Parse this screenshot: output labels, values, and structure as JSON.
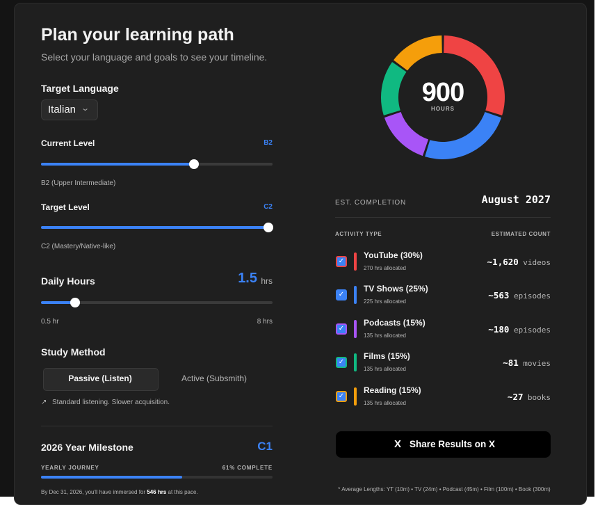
{
  "header": {
    "title": "Plan your learning path",
    "subtitle": "Select your language and goals to see your timeline."
  },
  "target_language": {
    "label": "Target Language",
    "value": "Italian"
  },
  "current_level": {
    "label": "Current Level",
    "badge": "B2",
    "description": "B2 (Upper Intermediate)"
  },
  "target_level": {
    "label": "Target Level",
    "badge": "C2",
    "description": "C2 (Mastery/Native-like)"
  },
  "daily_hours": {
    "label": "Daily Hours",
    "value": 1.5,
    "unit": "hrs",
    "min_label": "0.5 hr",
    "max_label": "8 hrs"
  },
  "study_method": {
    "label": "Study Method",
    "options": [
      "Passive (Listen)",
      "Active (Subsmith)"
    ],
    "note": "Standard listening. Slower acquisition."
  },
  "milestone": {
    "title": "2026 Year Milestone",
    "level": "C1",
    "journey_label": "YEARLY JOURNEY",
    "progress": 61,
    "progress_label": "61% COMPLETE",
    "note_before": "By Dec 31, 2026, you'll have immersed for ",
    "note_bold": "546 hrs",
    "note_after": " at this pace."
  },
  "summary": {
    "total": 900,
    "total_unit": "HOURS",
    "completion_label": "EST. COMPLETION",
    "completion_value": "August 2027"
  },
  "activities": {
    "header_type": "ACTIVITY TYPE",
    "header_count": "ESTIMATED COUNT",
    "items": [
      {
        "name": "YouTube (30%)",
        "share": 30,
        "allocated": "270 hrs allocated",
        "count": "~1,620",
        "unit": "videos",
        "color": "#ef4444"
      },
      {
        "name": "TV Shows (25%)",
        "share": 25,
        "allocated": "225 hrs allocated",
        "count": "~563",
        "unit": "episodes",
        "color": "#3b82f6"
      },
      {
        "name": "Podcasts (15%)",
        "share": 15,
        "allocated": "135 hrs allocated",
        "count": "~180",
        "unit": "episodes",
        "color": "#a855f7"
      },
      {
        "name": "Films (15%)",
        "share": 15,
        "allocated": "135 hrs allocated",
        "count": "~81",
        "unit": "movies",
        "color": "#10b981"
      },
      {
        "name": "Reading (15%)",
        "share": 15,
        "allocated": "135 hrs allocated",
        "count": "~27",
        "unit": "books",
        "color": "#f59e0b"
      }
    ]
  },
  "share_button": {
    "icon": "X",
    "label": "Share Results on X"
  },
  "footer": {
    "note": "* Average Lengths: YT (10m) • TV (24m) • Podcast (45m) • Film (100m) • Book (300m)"
  }
}
